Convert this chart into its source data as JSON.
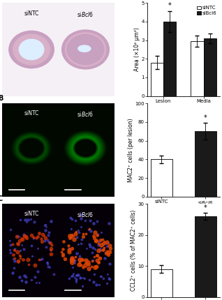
{
  "panel_A": {
    "categories": [
      "Lesion",
      "Media"
    ],
    "siNTC_values": [
      1.8,
      2.95
    ],
    "siBcl6_values": [
      4.0,
      3.1
    ],
    "siNTC_errors": [
      0.35,
      0.3
    ],
    "siBcl6_errors": [
      0.55,
      0.25
    ],
    "ylabel": "Area (×10⁴ μm²)",
    "ylim": [
      0,
      5
    ],
    "yticks": [
      0,
      1,
      2,
      3,
      4,
      5
    ],
    "sig_positions": [
      0
    ],
    "sig_label": "*"
  },
  "panel_B": {
    "siNTC_value": 40,
    "siBcl6_value": 70,
    "siNTC_error": 4,
    "siBcl6_error": 9,
    "ylabel": "MAC2⁺ cells (per lesion)",
    "ylim": [
      0,
      100
    ],
    "yticks": [
      0,
      20,
      40,
      60,
      80,
      100
    ],
    "sig_label": "*"
  },
  "panel_C": {
    "siNTC_value": 9,
    "siBcl6_value": 26,
    "siNTC_error": 1.2,
    "siBcl6_error": 1.2,
    "ylabel": "CCL2⁺ cells (% of MAC2⁺ cells)",
    "ylim": [
      0,
      30
    ],
    "yticks": [
      0,
      10,
      20,
      30
    ],
    "sig_label": "*"
  },
  "colors": {
    "siNTC": "#ffffff",
    "siBcl6": "#1a1a1a",
    "edge": "#000000"
  },
  "legend_labels": [
    "siNTC",
    "siBcl6"
  ],
  "fontsize_axis": 5.5,
  "fontsize_tick": 5.0,
  "fontsize_legend": 5.0,
  "fontsize_panel": 7,
  "fontsize_label": 5.5
}
